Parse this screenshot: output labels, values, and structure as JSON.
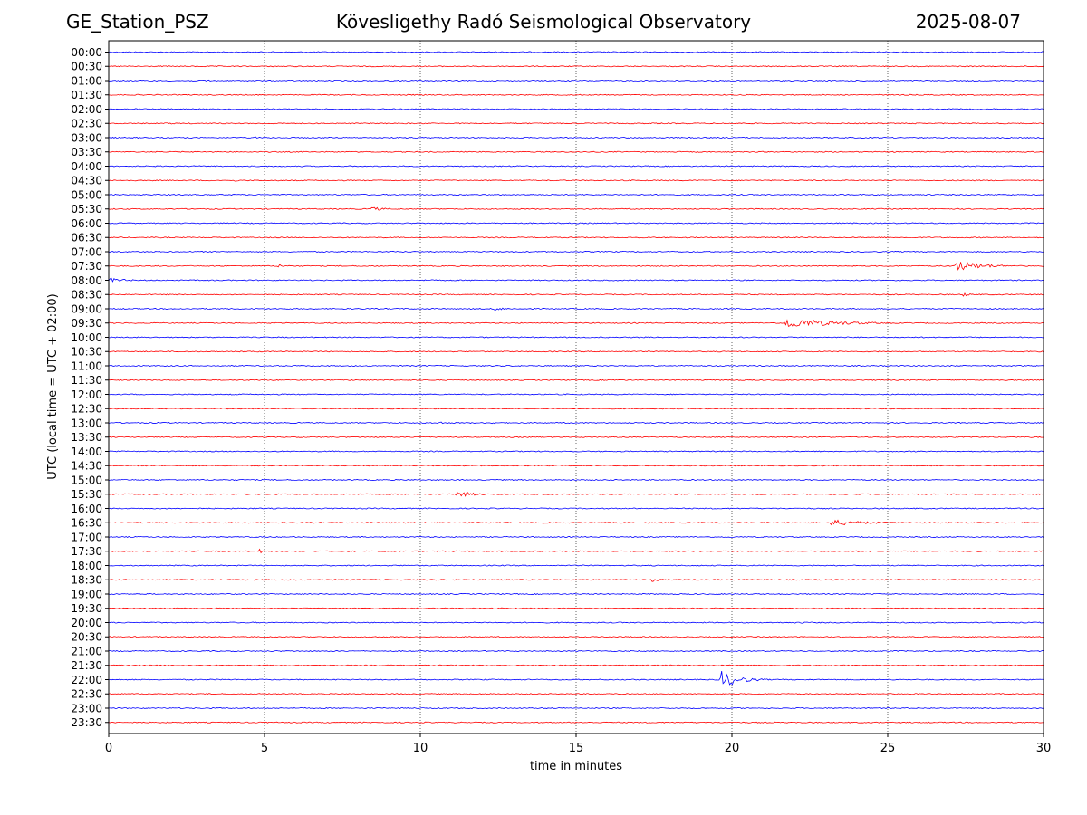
{
  "header": {
    "station": "GE_Station_PSZ",
    "observatory": "Kövesligethy Radó Seismological Observatory",
    "date": "2025-08-07"
  },
  "chart_data": {
    "type": "line",
    "title": "Kövesligethy Radó Seismological Observatory",
    "xlabel": "time in minutes",
    "ylabel": "UTC (local time = UTC + 02:00)",
    "xlim": [
      0,
      30
    ],
    "x_ticks": [
      0,
      5,
      10,
      15,
      20,
      25,
      30
    ],
    "x_grid": "vertical dotted lines at 5, 10, 15, 20, 25",
    "rows": [
      "00:00",
      "00:30",
      "01:00",
      "01:30",
      "02:00",
      "02:30",
      "03:00",
      "03:30",
      "04:00",
      "04:30",
      "05:00",
      "05:30",
      "06:00",
      "06:30",
      "07:00",
      "07:30",
      "08:00",
      "08:30",
      "09:00",
      "09:30",
      "10:00",
      "10:30",
      "11:00",
      "11:30",
      "12:00",
      "12:30",
      "13:00",
      "13:30",
      "14:00",
      "14:30",
      "15:00",
      "15:30",
      "16:00",
      "16:30",
      "17:00",
      "17:30",
      "18:00",
      "18:30",
      "19:00",
      "19:30",
      "20:00",
      "20:30",
      "21:00",
      "21:30",
      "22:00",
      "22:30",
      "23:00",
      "23:30"
    ],
    "row_colors": [
      "#0000ff",
      "#ff0000"
    ],
    "events": [
      {
        "row": "01:00",
        "start_min": 3.0,
        "duration_min": 1.4,
        "amplitude": 1.5
      },
      {
        "row": "02:30",
        "start_min": 1.9,
        "duration_min": 0.6,
        "amplitude": 2.2
      },
      {
        "row": "03:00",
        "start_min": 4.7,
        "duration_min": 0.5,
        "amplitude": 1.6
      },
      {
        "row": "04:30",
        "start_min": 4.0,
        "duration_min": 0.4,
        "amplitude": 2.2
      },
      {
        "row": "05:30",
        "start_min": 8.4,
        "duration_min": 1.5,
        "amplitude": 2.6
      },
      {
        "row": "07:30",
        "start_min": 5.4,
        "duration_min": 0.7,
        "amplitude": 3.5
      },
      {
        "row": "07:30",
        "start_min": 27.1,
        "duration_min": 2.9,
        "amplitude": 6.5
      },
      {
        "row": "08:00",
        "start_min": 0.0,
        "duration_min": 1.8,
        "amplitude": 2.8
      },
      {
        "row": "08:30",
        "start_min": 27.4,
        "duration_min": 0.8,
        "amplitude": 2.4
      },
      {
        "row": "09:00",
        "start_min": 12.3,
        "duration_min": 1.4,
        "amplitude": 2.4
      },
      {
        "row": "09:30",
        "start_min": 21.6,
        "duration_min": 5.2,
        "amplitude": 6.0
      },
      {
        "row": "13:00",
        "start_min": 10.5,
        "duration_min": 1.2,
        "amplitude": 1.8
      },
      {
        "row": "13:00",
        "start_min": 12.2,
        "duration_min": 0.7,
        "amplitude": 2.0
      },
      {
        "row": "15:30",
        "start_min": 11.1,
        "duration_min": 1.8,
        "amplitude": 4.0
      },
      {
        "row": "16:30",
        "start_min": 23.0,
        "duration_min": 4.0,
        "amplitude": 4.0
      },
      {
        "row": "17:30",
        "start_min": 4.8,
        "duration_min": 0.5,
        "amplitude": 3.2
      },
      {
        "row": "18:30",
        "start_min": 17.4,
        "duration_min": 0.9,
        "amplitude": 2.4
      },
      {
        "row": "20:00",
        "start_min": 22.2,
        "duration_min": 0.8,
        "amplitude": 1.4
      },
      {
        "row": "22:00",
        "start_min": 19.6,
        "duration_min": 1.8,
        "amplitude": 11.0
      }
    ]
  }
}
